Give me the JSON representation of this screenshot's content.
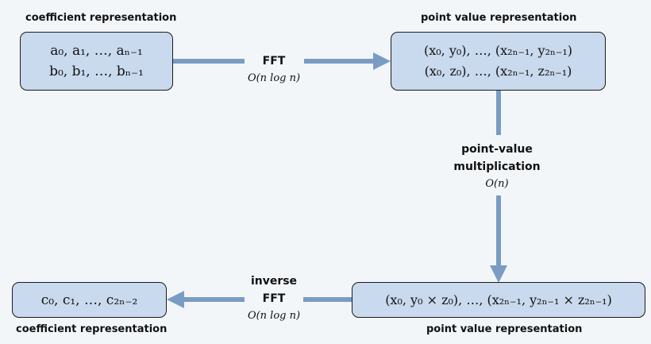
{
  "boxes": {
    "coeff_input": {
      "label": "coefficient representation",
      "lines": [
        "a₀, a₁, …, aₙ₋₁",
        "b₀, b₁, …, bₙ₋₁"
      ]
    },
    "point_value_input": {
      "label": "point value representation",
      "lines": [
        "(x₀, y₀), …, (x₂ₙ₋₁, y₂ₙ₋₁)",
        "(x₀, z₀), …, (x₂ₙ₋₁, z₂ₙ₋₁)"
      ]
    },
    "point_value_product": {
      "label": "point value representation",
      "lines": [
        "(x₀, y₀ × z₀), …, (x₂ₙ₋₁, y₂ₙ₋₁ × z₂ₙ₋₁)"
      ]
    },
    "coeff_output": {
      "label": "coefficient representation",
      "lines": [
        "c₀, c₁, …, c₂ₙ₋₂"
      ]
    }
  },
  "edges": {
    "fft": {
      "title": "FFT",
      "complexity": "O(n log n)"
    },
    "multiply": {
      "title_line1": "point-value",
      "title_line2": "multiplication",
      "complexity": "O(n)"
    },
    "inverse_fft": {
      "title_line1": "inverse",
      "title_line2": "FFT",
      "complexity": "O(n log n)"
    }
  },
  "colors": {
    "arrow": "#7a9cc4",
    "box_fill": "#c9d9ee",
    "box_border": "#1b1b1b"
  }
}
